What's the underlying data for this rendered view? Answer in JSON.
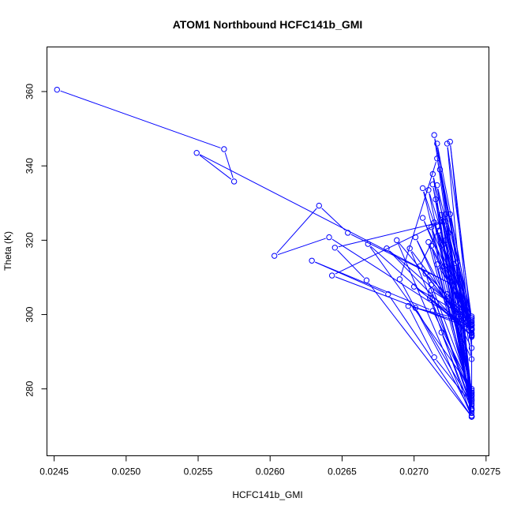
{
  "chart_data": {
    "type": "line",
    "title": "ATOM1 Northbound HCFC141b_GMI",
    "xlabel": "HCFC141b_GMI",
    "ylabel": "Theta (K)",
    "xlim": [
      0.02445,
      0.02752
    ],
    "ylim": [
      262,
      372
    ],
    "x_ticks": [
      "0.0245",
      "0.0250",
      "0.0255",
      "0.0260",
      "0.0265",
      "0.0270",
      "0.0275"
    ],
    "y_ticks": [
      "280",
      "300",
      "320",
      "340",
      "360"
    ],
    "grid": false,
    "colors": {
      "series": "#0000ff",
      "axes": "#000000"
    },
    "series": [
      {
        "marker": "open-circle",
        "x": [
          0.02452,
          0.02568,
          0.02575,
          0.02549,
          0.02727,
          0.02654,
          0.02634,
          0.02603,
          0.02641,
          0.0274,
          0.02643,
          0.0272,
          0.02645,
          0.02667,
          0.0274,
          0.02682,
          0.02629,
          0.02713,
          0.0274,
          0.02668,
          0.0274,
          0.02681,
          0.0274,
          0.02696,
          0.02714,
          0.0274,
          0.02701,
          0.0274,
          0.02712,
          0.0274,
          0.02713,
          0.0274,
          0.0269,
          0.02716,
          0.0274,
          0.02704,
          0.02722,
          0.0274,
          0.02712,
          0.0274,
          0.02724,
          0.0274,
          0.02725,
          0.0274,
          0.02701,
          0.0274,
          0.02729,
          0.0274,
          0.0273,
          0.0274,
          0.02688,
          0.0274,
          0.02697,
          0.0274,
          0.02716,
          0.0274,
          0.02738,
          0.02713,
          0.0274,
          0.02719,
          0.0274,
          0.02714,
          0.0274,
          0.02708,
          0.0274,
          0.02716,
          0.0274,
          0.02722,
          0.0274,
          0.0271,
          0.0274,
          0.02719,
          0.0274,
          0.02712,
          0.0274,
          0.02723,
          0.0274,
          0.02706,
          0.0274,
          0.0272,
          0.0274,
          0.02723,
          0.0274,
          0.0271,
          0.0274,
          0.02715,
          0.0274,
          0.02721,
          0.0274,
          0.02712,
          0.0274,
          0.02725,
          0.0274,
          0.027,
          0.0274,
          0.02718,
          0.0274,
          0.02714,
          0.0274,
          0.02706,
          0.0274,
          0.02717,
          0.0274,
          0.02711,
          0.0274,
          0.02722,
          0.0274,
          0.02716,
          0.0274,
          0.0274,
          0.0274
        ],
        "y": [
          360.5,
          344.5,
          335.8,
          343.5,
          308.0,
          322.0,
          329.3,
          315.8,
          320.8,
          296.2,
          310.5,
          325.0,
          318.0,
          309.2,
          272.5,
          305.5,
          314.5,
          301.0,
          280.0,
          319.0,
          294.2,
          317.8,
          298.0,
          302.3,
          288.5,
          276.0,
          301.8,
          297.0,
          318.5,
          277.5,
          335.0,
          273.5,
          309.5,
          342.0,
          295.0,
          313.0,
          327.0,
          299.5,
          306.5,
          274.8,
          322.0,
          296.5,
          346.5,
          291.0,
          320.8,
          288.0,
          313.8,
          278.5,
          314.2,
          272.5,
          320.0,
          295.8,
          317.8,
          278.0,
          346.0,
          297.5,
          296.5,
          337.8,
          272.8,
          326.8,
          294.5,
          348.3,
          275.5,
          311.0,
          299.0,
          313.5,
          277.0,
          325.0,
          296.0,
          333.5,
          278.2,
          295.2,
          274.2,
          323.5,
          297.0,
          305.5,
          279.5,
          334.0,
          294.0,
          318.8,
          299.0,
          346.0,
          276.5,
          319.5,
          296.0,
          331.0,
          274.5,
          313.0,
          297.2,
          308.0,
          279.0,
          327.0,
          298.5,
          307.5,
          296.0,
          339.0,
          279.0,
          324.8,
          298.0,
          326.0,
          295.0,
          322.5,
          272.5,
          304.5,
          294.5,
          320.0,
          277.0,
          334.8,
          296.0,
          274.5,
          272.5
        ]
      }
    ]
  }
}
